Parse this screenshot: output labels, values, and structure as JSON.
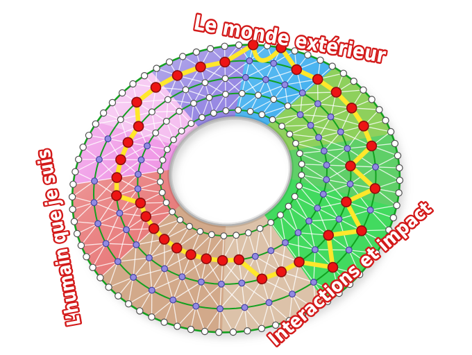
{
  "labels": [
    {
      "id": "top",
      "text": "Le monde extérieur",
      "color": "#d31a1a"
    },
    {
      "id": "left",
      "text": "L’humain que je suis",
      "color": "#d31a1a"
    },
    {
      "id": "bottom_right",
      "text": "Interactions et impact",
      "color": "#d31a1a"
    }
  ],
  "chart_data": {
    "type": "radial-wheel-network",
    "levels": 5,
    "spokes": 36,
    "sectors": [
      {
        "id": "blue",
        "color": "#45b1ef",
        "from": 73,
        "to": 40
      },
      {
        "id": "light-green",
        "color": "#8ed05c",
        "from": 40,
        "to": 5
      },
      {
        "id": "green-upper",
        "color": "#5ecf68",
        "from": 5,
        "to": -25
      },
      {
        "id": "green",
        "color": "#43da5f",
        "from": -25,
        "to": -70
      },
      {
        "id": "tan-light",
        "color": "#dcc2a9",
        "from": -70,
        "to": -108
      },
      {
        "id": "tan",
        "color": "#d2a98a",
        "from": -108,
        "to": -159
      },
      {
        "id": "red",
        "color": "#e87c7c",
        "from": -159,
        "to": -199
      },
      {
        "id": "pink",
        "color": "#ee8fe4",
        "from": -199,
        "to": -225
      },
      {
        "id": "lavender",
        "color": "#f4b7ee",
        "from": -225,
        "to": -252
      },
      {
        "id": "purple",
        "color": "#8c7ce0",
        "from": -252,
        "to": -287
      }
    ],
    "scores": [
      4,
      4,
      3,
      3,
      3,
      3,
      3,
      3,
      2,
      3,
      2,
      3,
      2,
      3,
      2,
      2,
      2,
      1,
      1,
      1,
      1,
      1,
      1,
      1,
      1,
      1,
      2,
      2,
      2,
      2,
      2,
      3,
      3,
      3,
      3,
      3
    ],
    "node_color_overrides": [
      {
        "rings": [
          1,
          2,
          3
        ],
        "param_max": -225,
        "color": "white"
      },
      {
        "rings": [
          1
        ],
        "param_min": 40,
        "color": "white"
      }
    ],
    "style": {
      "ring_line": "#12a01f",
      "mesh_line": "#ffffff",
      "score_path": "#ffe72b",
      "node_fill_white": "#ffffff",
      "node_stroke_white": "#4f4f4f",
      "node_fill_purple": "#928ae2",
      "node_stroke_purple": "#45409e",
      "score_node_fill": "#ec1414",
      "score_node_stroke": "#8c0f0f",
      "hole_rim": "#b3b3b3"
    }
  }
}
